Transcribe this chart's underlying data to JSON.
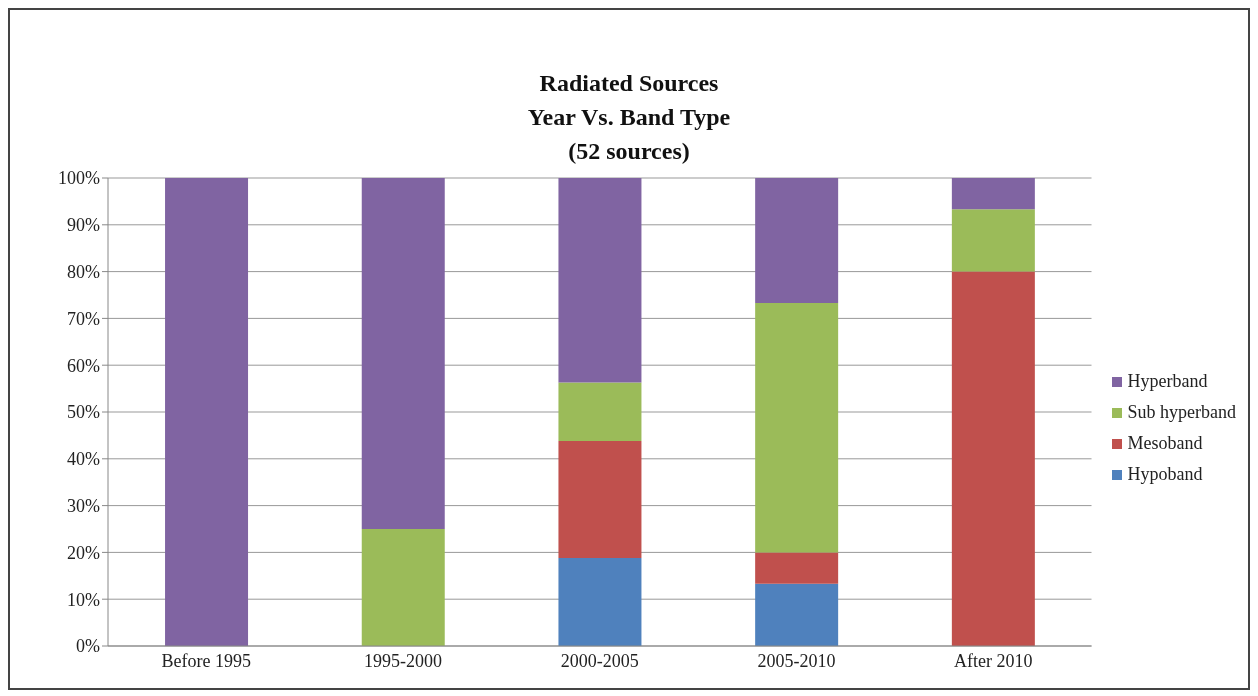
{
  "chart_data": {
    "type": "bar",
    "title": "Radiated Sources\nYear Vs. Band Type\n(52 sources)",
    "categories": [
      "Before 1995",
      "1995-2000",
      "2000-2005",
      "2005-2010",
      "After 2010"
    ],
    "stacked": true,
    "series": [
      {
        "name": "Hypoband",
        "color": "#4f81bd",
        "values": [
          0,
          0,
          18.8,
          13.3,
          0
        ]
      },
      {
        "name": "Mesoband",
        "color": "#c0504d",
        "values": [
          0,
          0,
          25,
          6.7,
          80
        ]
      },
      {
        "name": "Sub hyperband",
        "color": "#9bbb59",
        "values": [
          0,
          25,
          12.5,
          53.3,
          13.3
        ]
      },
      {
        "name": "Hyperband",
        "color": "#8064a2",
        "values": [
          100,
          75,
          43.7,
          26.7,
          6.7
        ]
      }
    ],
    "ylim": [
      0,
      100
    ],
    "yticks": [
      {
        "value": 0,
        "label": "0%"
      },
      {
        "value": 10,
        "label": "10%"
      },
      {
        "value": 20,
        "label": "20%"
      },
      {
        "value": 30,
        "label": "30%"
      },
      {
        "value": 40,
        "label": "40%"
      },
      {
        "value": 50,
        "label": "50%"
      },
      {
        "value": 60,
        "label": "60%"
      },
      {
        "value": 70,
        "label": "70%"
      },
      {
        "value": 80,
        "label": "80%"
      },
      {
        "value": 90,
        "label": "90%"
      },
      {
        "value": 100,
        "label": "100%"
      }
    ],
    "grid": "y",
    "legend": "right"
  }
}
